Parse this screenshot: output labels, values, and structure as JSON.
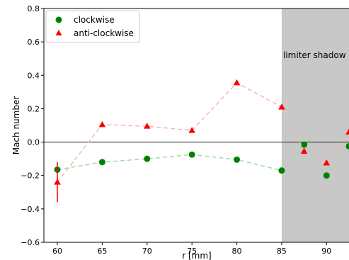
{
  "chart_data": {
    "type": "scatter",
    "xlabel": "r [mm]",
    "ylabel": "Mach number",
    "xlim": [
      58.5,
      92.5
    ],
    "ylim": [
      -0.6,
      0.8
    ],
    "xticks": [
      60,
      65,
      70,
      75,
      80,
      85,
      90
    ],
    "yticks": [
      -0.6,
      -0.4,
      -0.2,
      0.0,
      0.2,
      0.4,
      0.6,
      0.8
    ],
    "xtick_labels": [
      "60",
      "65",
      "70",
      "75",
      "80",
      "85",
      "90"
    ],
    "ytick_labels": [
      "−0.6",
      "−0.4",
      "−0.2",
      "0.0",
      "0.2",
      "0.4",
      "0.6",
      "0.8"
    ],
    "hline": 0.0,
    "shaded_region": {
      "x_start": 85,
      "x_end": 92.5,
      "color": "#c8c8c8",
      "label": "limiter shadow"
    },
    "legend": {
      "placement": "top-left"
    },
    "series": [
      {
        "name": "clockwise",
        "marker": "circle",
        "color": "#008000",
        "line_color": "#a6d8a6",
        "x": [
          60,
          65,
          70,
          75,
          80,
          85,
          87.5,
          90,
          92.5
        ],
        "y": [
          -0.165,
          -0.12,
          -0.1,
          -0.075,
          -0.105,
          -0.17,
          -0.015,
          -0.2,
          -0.025
        ]
      },
      {
        "name": "anti-clockwise",
        "marker": "triangle",
        "color": "#ff0000",
        "line_color": "#f7b5b5",
        "x": [
          60,
          65,
          70,
          75,
          80,
          85,
          87.5,
          90,
          92.5
        ],
        "y": [
          -0.24,
          0.105,
          0.095,
          0.07,
          0.355,
          0.21,
          -0.055,
          -0.125,
          0.06
        ],
        "error_bars": [
          {
            "x": 60,
            "low": -0.36,
            "high": -0.12
          }
        ]
      }
    ]
  }
}
